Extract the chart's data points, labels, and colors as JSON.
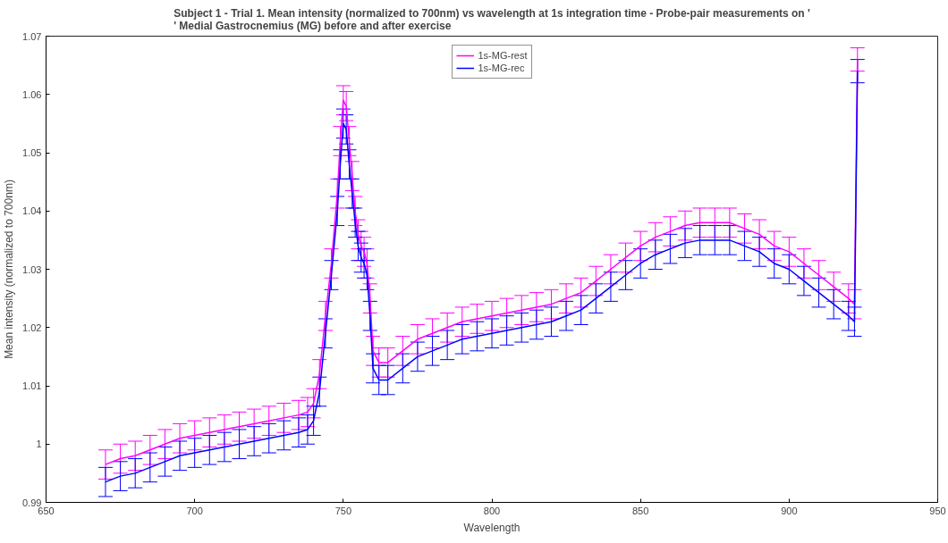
{
  "chart_data": {
    "type": "line",
    "title": "Subject 1 - Trial 1. Mean intensity (normalized to 700nm) vs wavelength at 1s integration time - Probe-pair measurements on '\n' Medial Gastrocnemius (MG) before and after exercise",
    "xlabel": "Wavelength",
    "ylabel": "Mean intensity (normalized to 700nm)",
    "x": [
      670,
      675,
      680,
      685,
      690,
      695,
      700,
      705,
      710,
      715,
      720,
      725,
      730,
      735,
      738,
      740,
      742,
      744,
      746,
      748,
      749,
      750,
      751,
      752,
      753,
      754,
      755,
      756,
      757,
      758,
      759,
      760,
      762,
      765,
      770,
      775,
      780,
      785,
      790,
      795,
      800,
      805,
      810,
      815,
      820,
      825,
      830,
      835,
      840,
      845,
      850,
      855,
      860,
      865,
      870,
      875,
      880,
      885,
      890,
      895,
      900,
      905,
      910,
      915,
      920,
      922,
      923
    ],
    "series": [
      {
        "name": "1s-MG-rest",
        "color": "#ff00ff",
        "values": [
          0.9965,
          0.9975,
          0.998,
          0.999,
          1.0,
          1.001,
          1.0015,
          1.002,
          1.0025,
          1.003,
          1.0035,
          1.004,
          1.0045,
          1.005,
          1.0055,
          1.007,
          1.012,
          1.022,
          1.031,
          1.043,
          1.052,
          1.059,
          1.058,
          1.052,
          1.046,
          1.04,
          1.036,
          1.034,
          1.033,
          1.031,
          1.025,
          1.016,
          1.014,
          1.014,
          1.016,
          1.018,
          1.019,
          1.02,
          1.021,
          1.0215,
          1.022,
          1.0225,
          1.023,
          1.0235,
          1.024,
          1.025,
          1.026,
          1.028,
          1.03,
          1.032,
          1.034,
          1.0355,
          1.0365,
          1.0375,
          1.038,
          1.038,
          1.038,
          1.037,
          1.036,
          1.034,
          1.033,
          1.031,
          1.029,
          1.027,
          1.025,
          1.024,
          1.066
        ],
        "errors": [
          0.0025,
          0.0025,
          0.0025,
          0.0025,
          0.0025,
          0.0025,
          0.0025,
          0.0025,
          0.0025,
          0.0025,
          0.0025,
          0.0025,
          0.0025,
          0.0025,
          0.0025,
          0.0025,
          0.0025,
          0.0025,
          0.0025,
          0.0025,
          0.0025,
          0.0025,
          0.0025,
          0.0025,
          0.0025,
          0.0025,
          0.0025,
          0.0025,
          0.0025,
          0.0025,
          0.0025,
          0.0025,
          0.0025,
          0.0025,
          0.0025,
          0.0025,
          0.0025,
          0.0025,
          0.0025,
          0.0025,
          0.0025,
          0.0025,
          0.0025,
          0.0025,
          0.0025,
          0.0025,
          0.0025,
          0.0025,
          0.0025,
          0.0025,
          0.0025,
          0.0025,
          0.0025,
          0.0025,
          0.0025,
          0.0025,
          0.0025,
          0.0025,
          0.0025,
          0.0025,
          0.0025,
          0.0025,
          0.0025,
          0.0025,
          0.0025,
          0.0025,
          0.002
        ]
      },
      {
        "name": "1s-MG-rec",
        "color": "#0000ff",
        "values": [
          0.9935,
          0.9945,
          0.995,
          0.996,
          0.997,
          0.998,
          0.9985,
          0.999,
          0.9995,
          1.0,
          1.0005,
          1.001,
          1.0015,
          1.002,
          1.0025,
          1.004,
          1.009,
          1.019,
          1.029,
          1.04,
          1.048,
          1.055,
          1.054,
          1.048,
          1.043,
          1.038,
          1.034,
          1.032,
          1.031,
          1.029,
          1.022,
          1.013,
          1.011,
          1.011,
          1.013,
          1.015,
          1.016,
          1.017,
          1.018,
          1.0185,
          1.019,
          1.0195,
          1.02,
          1.0205,
          1.021,
          1.022,
          1.023,
          1.025,
          1.027,
          1.029,
          1.031,
          1.0325,
          1.0335,
          1.0345,
          1.035,
          1.035,
          1.035,
          1.034,
          1.033,
          1.031,
          1.03,
          1.028,
          1.026,
          1.024,
          1.022,
          1.021,
          1.064
        ],
        "errors": [
          0.0025,
          0.0025,
          0.0025,
          0.0025,
          0.0025,
          0.0025,
          0.0025,
          0.0025,
          0.0025,
          0.0025,
          0.0025,
          0.0025,
          0.0025,
          0.0025,
          0.0025,
          0.0025,
          0.0025,
          0.0025,
          0.0025,
          0.0025,
          0.0025,
          0.0025,
          0.0025,
          0.0025,
          0.0025,
          0.0025,
          0.0025,
          0.0025,
          0.0025,
          0.0025,
          0.0025,
          0.0025,
          0.0025,
          0.0025,
          0.0025,
          0.0025,
          0.0025,
          0.0025,
          0.0025,
          0.0025,
          0.0025,
          0.0025,
          0.0025,
          0.0025,
          0.0025,
          0.0025,
          0.0025,
          0.0025,
          0.0025,
          0.0025,
          0.0025,
          0.0025,
          0.0025,
          0.0025,
          0.0025,
          0.0025,
          0.0025,
          0.0025,
          0.0025,
          0.0025,
          0.0025,
          0.0025,
          0.0025,
          0.0025,
          0.0025,
          0.0025,
          0.002
        ]
      }
    ],
    "xlim": [
      650,
      950
    ],
    "xticks": [
      650,
      700,
      750,
      800,
      850,
      900,
      950
    ],
    "ylim": [
      0.99,
      1.07
    ],
    "yticks": [
      0.99,
      1,
      1.01,
      1.02,
      1.03,
      1.04,
      1.05,
      1.06,
      1.07
    ],
    "grid": false,
    "legend": "top",
    "marker": "none",
    "line_style": "solid"
  }
}
